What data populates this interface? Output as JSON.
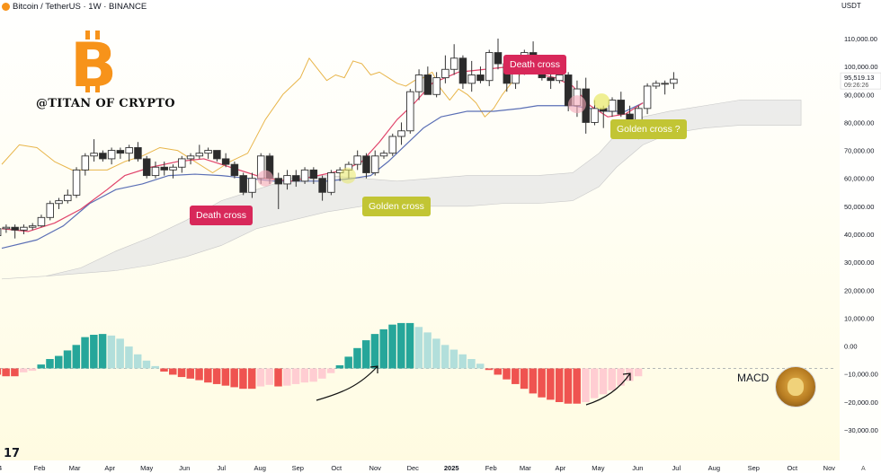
{
  "header": {
    "title": "Bitcoin / TetherUS · 1W · BINANCE",
    "currency": "USDT"
  },
  "watermark": {
    "text": "@TITAN OF CRYPTO",
    "logo_glyph": "B",
    "logo_icon": "bitcoin-logo-icon"
  },
  "annotations": {
    "death_cross_1": "Death cross",
    "golden_cross": "Golden cross",
    "death_cross_2": "Death cross",
    "golden_cross_q": "Golden cross ?",
    "macd": "MACD"
  },
  "price_tag": {
    "price": "95,519.13",
    "countdown": "09:26:26"
  },
  "tv_logo": "17",
  "colors": {
    "up": "#ffffff",
    "down": "#2b2b2b",
    "tenkan": "#e0436a",
    "kijun": "#5b6fb5",
    "chikou": "#e8b54a",
    "cloud": "#e6e6e6",
    "hist_up_strong": "#26a69a",
    "hist_up_weak": "#b2dfdb",
    "hist_down_strong": "#ef5350",
    "hist_down_weak": "#ffcdd2",
    "red_label": "#d8285a",
    "yellow_label": "#c2c534"
  },
  "chart_data": {
    "type": "candlestick",
    "title": "Bitcoin / TetherUS · 1W · BINANCE",
    "y_axis": {
      "min": -30000,
      "max": 110000,
      "ticks": [
        "110,000.00",
        "100,000.00",
        "90,000.00",
        "80,000.00",
        "70,000.00",
        "60,000.00",
        "50,000.00",
        "40,000.00",
        "30,000.00",
        "20,000.00",
        "10,000.00",
        "0.00",
        "−10,000.00",
        "−20,000.00",
        "−30,000.00"
      ],
      "tick_values": [
        110000,
        100000,
        90000,
        80000,
        70000,
        60000,
        50000,
        40000,
        30000,
        20000,
        10000,
        0,
        -10000,
        -20000,
        -30000
      ]
    },
    "x_axis": {
      "labels": [
        "4",
        "Feb",
        "Mar",
        "Apr",
        "May",
        "Jun",
        "Jul",
        "Aug",
        "Sep",
        "Oct",
        "Nov",
        "Dec",
        "2025",
        "Feb",
        "Mar",
        "Apr",
        "May",
        "Jun",
        "Jul",
        "Aug",
        "Sep",
        "Oct",
        "Nov"
      ],
      "label_weeks": [
        -0.2,
        4.3,
        8.3,
        12.3,
        16.5,
        20.8,
        25,
        29.4,
        33.7,
        38.1,
        42.5,
        46.8,
        51.2,
        55.7,
        59.6,
        63.6,
        67.9,
        72.4,
        76.8,
        81.1,
        85.6,
        90,
        94.2
      ]
    },
    "candles": [
      [
        39.5,
        43,
        38.5,
        42
      ],
      [
        42,
        43.5,
        40.5,
        42.5
      ],
      [
        42.5,
        43.5,
        38.5,
        41.5
      ],
      [
        41.5,
        43.5,
        40,
        42.5
      ],
      [
        42.5,
        44,
        41.5,
        43
      ],
      [
        43,
        47,
        42.5,
        46
      ],
      [
        46,
        52,
        45,
        51
      ],
      [
        51,
        53,
        49,
        52
      ],
      [
        52,
        56,
        51,
        54
      ],
      [
        54,
        64,
        53,
        63
      ],
      [
        63,
        69,
        61,
        68
      ],
      [
        68,
        74,
        66,
        69
      ],
      [
        69,
        70,
        66,
        67
      ],
      [
        67,
        71,
        65,
        70
      ],
      [
        70,
        71,
        67,
        69
      ],
      [
        69,
        72,
        66,
        71
      ],
      [
        71,
        73,
        66,
        67
      ],
      [
        67,
        68,
        60,
        61
      ],
      [
        61,
        66,
        60,
        64
      ],
      [
        64,
        66,
        61,
        63
      ],
      [
        63,
        65,
        60,
        64
      ],
      [
        64,
        68,
        62,
        67
      ],
      [
        67,
        69,
        65,
        68
      ],
      [
        68,
        72,
        67,
        69
      ],
      [
        69,
        71,
        67,
        70
      ],
      [
        70,
        70,
        66,
        67
      ],
      [
        67,
        69,
        64,
        65
      ],
      [
        65,
        66,
        60,
        61
      ],
      [
        61,
        62,
        54,
        55
      ],
      [
        55,
        62,
        53,
        60
      ],
      [
        60,
        69,
        58,
        68
      ],
      [
        68,
        69,
        58,
        60
      ],
      [
        60,
        62,
        49,
        58
      ],
      [
        58,
        63,
        56,
        61
      ],
      [
        61,
        63,
        57,
        59
      ],
      [
        59,
        64,
        58,
        63
      ],
      [
        63,
        64,
        58,
        60
      ],
      [
        60,
        61,
        52,
        55
      ],
      [
        55,
        63,
        54,
        62
      ],
      [
        62,
        64,
        59,
        63
      ],
      [
        63,
        66,
        60,
        65
      ],
      [
        65,
        70,
        63,
        68
      ],
      [
        68,
        69,
        60,
        62
      ],
      [
        62,
        70,
        61,
        68
      ],
      [
        68,
        70,
        67,
        69
      ],
      [
        69,
        76,
        68,
        75
      ],
      [
        75,
        80,
        72,
        77
      ],
      [
        77,
        92,
        76,
        91
      ],
      [
        91,
        99,
        88,
        97
      ],
      [
        97,
        100,
        90,
        90
      ],
      [
        90,
        98,
        89,
        96
      ],
      [
        96,
        104,
        94,
        99
      ],
      [
        99,
        108,
        97,
        103
      ],
      [
        103,
        104,
        92,
        94
      ],
      [
        94,
        102,
        91,
        97
      ],
      [
        97,
        100,
        94,
        95
      ],
      [
        95,
        106,
        93,
        105
      ],
      [
        105,
        110,
        99,
        101
      ],
      [
        101,
        103,
        91,
        94
      ],
      [
        94,
        102,
        92,
        98
      ],
      [
        98,
        106,
        97,
        105
      ],
      [
        105,
        109,
        99,
        102
      ],
      [
        102,
        104,
        95,
        96
      ],
      [
        96,
        99,
        92,
        95
      ],
      [
        95,
        101,
        94,
        97
      ],
      [
        97,
        98,
        84,
        86
      ],
      [
        86,
        95,
        82,
        92
      ],
      [
        92,
        96,
        76,
        80
      ],
      [
        80,
        88,
        79,
        85
      ],
      [
        85,
        86,
        78,
        84
      ],
      [
        84,
        89,
        82,
        88
      ],
      [
        88,
        91,
        82,
        83
      ],
      [
        83,
        86,
        75,
        80
      ],
      [
        80,
        86,
        74,
        85
      ],
      [
        85,
        94,
        83,
        93
      ],
      [
        93,
        95,
        92,
        94
      ],
      [
        94,
        95,
        90,
        94
      ],
      [
        94,
        98,
        92,
        95.5
      ]
    ],
    "candle_start_week": -0.5,
    "tenkan": [
      [
        0,
        42
      ],
      [
        3,
        41
      ],
      [
        6,
        44
      ],
      [
        9,
        49
      ],
      [
        12,
        56
      ],
      [
        14,
        61
      ],
      [
        17,
        64
      ],
      [
        20,
        66
      ],
      [
        23,
        67
      ],
      [
        26,
        64
      ],
      [
        30,
        60
      ],
      [
        33,
        59
      ],
      [
        36,
        61
      ],
      [
        39,
        63
      ],
      [
        41,
        66
      ],
      [
        43,
        73
      ],
      [
        45,
        81
      ],
      [
        47,
        87
      ],
      [
        49,
        94
      ],
      [
        52,
        98
      ],
      [
        55,
        99
      ],
      [
        58,
        100
      ],
      [
        60,
        98
      ],
      [
        63,
        96
      ],
      [
        65,
        93
      ],
      [
        67,
        86
      ],
      [
        69,
        82
      ],
      [
        71,
        83
      ],
      [
        73,
        87
      ]
    ],
    "kijun": [
      [
        0,
        35
      ],
      [
        4,
        38
      ],
      [
        7,
        43
      ],
      [
        10,
        51
      ],
      [
        13,
        56
      ],
      [
        16,
        58
      ],
      [
        19,
        61
      ],
      [
        22,
        61.5
      ],
      [
        25,
        61
      ],
      [
        28,
        60
      ],
      [
        31,
        59
      ],
      [
        34,
        59
      ],
      [
        37,
        59
      ],
      [
        40,
        60
      ],
      [
        42,
        61
      ],
      [
        44,
        66
      ],
      [
        46,
        72
      ],
      [
        48,
        78
      ],
      [
        50,
        82
      ],
      [
        53,
        84
      ],
      [
        56,
        84
      ],
      [
        59,
        85
      ],
      [
        61,
        86
      ],
      [
        63,
        86
      ],
      [
        65,
        86
      ],
      [
        67,
        85
      ],
      [
        69,
        84
      ],
      [
        71,
        84
      ],
      [
        73,
        87
      ]
    ],
    "chikou": [
      [
        0,
        65
      ],
      [
        2,
        72
      ],
      [
        4,
        71
      ],
      [
        6,
        66
      ],
      [
        8,
        63
      ],
      [
        10,
        63
      ],
      [
        12,
        63
      ],
      [
        14,
        66
      ],
      [
        16,
        68
      ],
      [
        18,
        71
      ],
      [
        20,
        70
      ],
      [
        22,
        66
      ],
      [
        24,
        62
      ],
      [
        26,
        66
      ],
      [
        28,
        69
      ],
      [
        30,
        81
      ],
      [
        32,
        90
      ],
      [
        34,
        96
      ],
      [
        35,
        103
      ],
      [
        36,
        99
      ],
      [
        37,
        95
      ],
      [
        38,
        97
      ],
      [
        39,
        96
      ],
      [
        40,
        102
      ],
      [
        41,
        101
      ],
      [
        42,
        97
      ],
      [
        43,
        98
      ],
      [
        44,
        96
      ],
      [
        45,
        94
      ],
      [
        46,
        93
      ],
      [
        47,
        95
      ],
      [
        48,
        96
      ],
      [
        49,
        98
      ],
      [
        50,
        92
      ],
      [
        51,
        88
      ],
      [
        52,
        92
      ],
      [
        53,
        90
      ],
      [
        54,
        87
      ],
      [
        55,
        82
      ],
      [
        56,
        85
      ],
      [
        57,
        90
      ],
      [
        58,
        94
      ],
      [
        59,
        97
      ]
    ],
    "cloud_top": [
      [
        0,
        24
      ],
      [
        5,
        25
      ],
      [
        9,
        28
      ],
      [
        13,
        34
      ],
      [
        17,
        39
      ],
      [
        21,
        45
      ],
      [
        25,
        52
      ],
      [
        29,
        56
      ],
      [
        33,
        60
      ],
      [
        37,
        61
      ],
      [
        41,
        60
      ],
      [
        45,
        59
      ],
      [
        49,
        60
      ],
      [
        53,
        61
      ],
      [
        57,
        61
      ],
      [
        61,
        61
      ],
      [
        65,
        62
      ],
      [
        68,
        69
      ],
      [
        70,
        76
      ],
      [
        73,
        82
      ],
      [
        76,
        84
      ],
      [
        80,
        86
      ],
      [
        84,
        88
      ],
      [
        88,
        88
      ],
      [
        91,
        88
      ]
    ],
    "cloud_bottom": [
      [
        0,
        24
      ],
      [
        5,
        25
      ],
      [
        9,
        26
      ],
      [
        13,
        27
      ],
      [
        17,
        29
      ],
      [
        21,
        32
      ],
      [
        25,
        36
      ],
      [
        29,
        42
      ],
      [
        33,
        45
      ],
      [
        37,
        48
      ],
      [
        41,
        50
      ],
      [
        45,
        50
      ],
      [
        49,
        50
      ],
      [
        53,
        50
      ],
      [
        57,
        51
      ],
      [
        61,
        51
      ],
      [
        65,
        52
      ],
      [
        68,
        57
      ],
      [
        70,
        64
      ],
      [
        73,
        72
      ],
      [
        76,
        76
      ],
      [
        80,
        78
      ],
      [
        84,
        79
      ],
      [
        88,
        79
      ],
      [
        91,
        79
      ]
    ],
    "macd_hist": [
      -0.8,
      -1,
      -1,
      -0.5,
      -0.3,
      0.5,
      1.2,
      1.6,
      2.3,
      3,
      4,
      4.3,
      4.4,
      4.2,
      3.8,
      2.8,
      1.8,
      1,
      0.3,
      -0.4,
      -0.8,
      -1.1,
      -1.3,
      -1.5,
      -1.8,
      -2,
      -2.2,
      -2.4,
      -2.6,
      -2.6,
      -2.3,
      -2.1,
      -2.3,
      -2.2,
      -2,
      -1.8,
      -1.7,
      -1.3,
      -0.6,
      0.4,
      1.5,
      2.6,
      3.6,
      4.4,
      5,
      5.6,
      5.8,
      5.8,
      5.3,
      4.6,
      3.8,
      3,
      2.4,
      1.8,
      1.2,
      0.6,
      -0.2,
      -0.8,
      -1.4,
      -2,
      -2.6,
      -3.2,
      -3.7,
      -4,
      -4.3,
      -4.5,
      -4.5,
      -4.3,
      -3.8,
      -3.3,
      -2.8,
      -2.2,
      -1.6,
      -1
    ],
    "macd_zero_value": -8000,
    "macd_scale_per_unit": 2800
  }
}
